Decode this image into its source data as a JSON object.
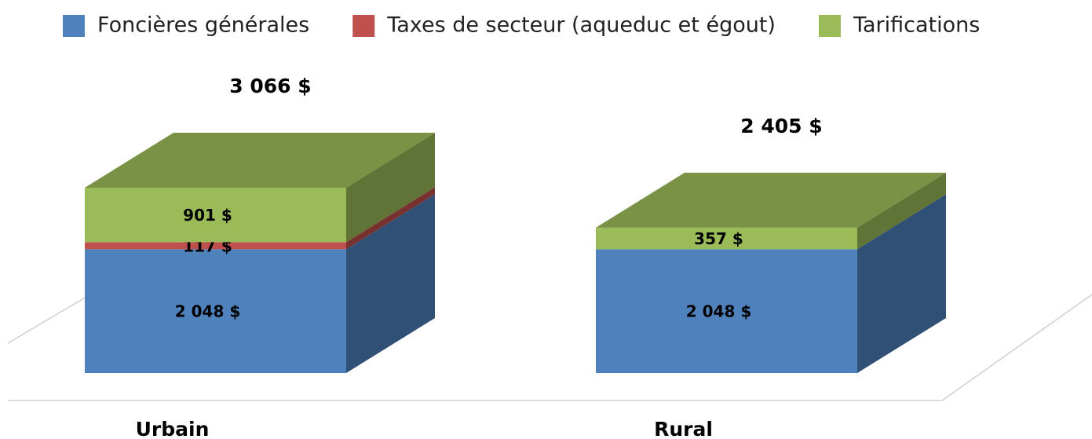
{
  "chart_data": {
    "type": "bar3d_stacked",
    "categories": [
      "Urbain",
      "Rural"
    ],
    "series": [
      {
        "name": "Foncières générales",
        "color": "#4f81bd",
        "values": [
          2048,
          2048
        ],
        "value_labels": [
          "2 048 $",
          "2 048 $"
        ]
      },
      {
        "name": "Taxes de secteur (aqueduc et égout)",
        "color": "#c0504d",
        "values": [
          117,
          null
        ],
        "value_labels": [
          "117 $",
          null
        ]
      },
      {
        "name": "Tarifications",
        "color": "#9bbb59",
        "values": [
          901,
          357
        ],
        "value_labels": [
          "901 $",
          "357 $"
        ]
      }
    ],
    "totals": [
      3066,
      2405
    ],
    "total_labels": [
      "3 066 $",
      "2 405 $"
    ],
    "legend": "top"
  }
}
